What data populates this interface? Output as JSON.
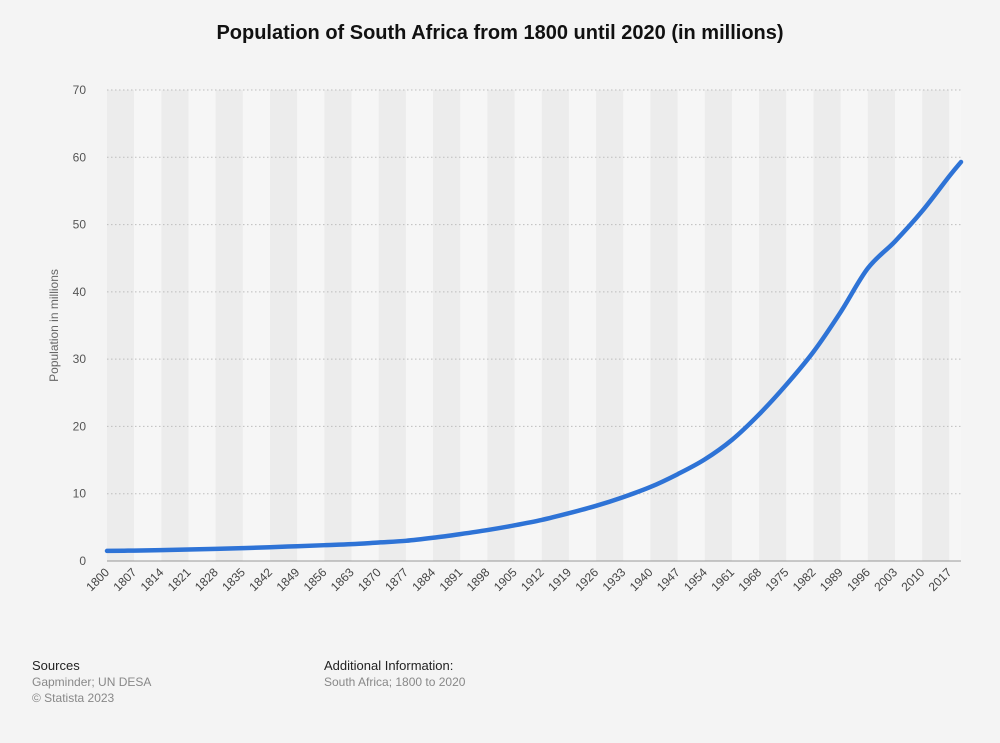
{
  "chart_data": {
    "type": "line",
    "title": "Population of South Africa from 1800 until 2020 (in millions)",
    "xlabel": "",
    "ylabel": "Population in millions",
    "ylim": [
      0,
      70
    ],
    "yticks": [
      0,
      10,
      20,
      30,
      40,
      50,
      60,
      70
    ],
    "grid": true,
    "xlim": [
      1800,
      2020
    ],
    "xtick_labels": [
      "1800",
      "1807",
      "1814",
      "1821",
      "1828",
      "1835",
      "1842",
      "1849",
      "1856",
      "1863",
      "1870",
      "1877",
      "1884",
      "1891",
      "1898",
      "1905",
      "1912",
      "1919",
      "1926",
      "1933",
      "1940",
      "1947",
      "1954",
      "1961",
      "1968",
      "1975",
      "1982",
      "1989",
      "1996",
      "2003",
      "2010",
      "2017"
    ],
    "series": [
      {
        "name": "Population",
        "color": "#2e73d6",
        "x": [
          1800,
          1807,
          1814,
          1821,
          1828,
          1835,
          1842,
          1849,
          1856,
          1863,
          1870,
          1877,
          1884,
          1891,
          1898,
          1905,
          1912,
          1919,
          1926,
          1933,
          1940,
          1947,
          1954,
          1961,
          1968,
          1975,
          1982,
          1989,
          1996,
          2003,
          2010,
          2017,
          2020
        ],
        "values": [
          1.5,
          1.55,
          1.62,
          1.7,
          1.8,
          1.92,
          2.05,
          2.2,
          2.35,
          2.5,
          2.75,
          3.0,
          3.45,
          4.0,
          4.6,
          5.3,
          6.1,
          7.1,
          8.2,
          9.5,
          11.0,
          12.9,
          15.1,
          18.0,
          21.8,
          26.2,
          31.1,
          37.0,
          43.5,
          47.5,
          52.0,
          57.2,
          59.3
        ]
      }
    ],
    "band_colors": [
      "#ececec",
      "#f6f6f6"
    ],
    "grid_color": "#bdbdbd"
  },
  "footer": {
    "sources_heading": "Sources",
    "sources_line1": "Gapminder; UN DESA",
    "sources_line2": "© Statista 2023",
    "additional_heading": "Additional Information:",
    "additional_line1": "South Africa; 1800 to 2020"
  }
}
